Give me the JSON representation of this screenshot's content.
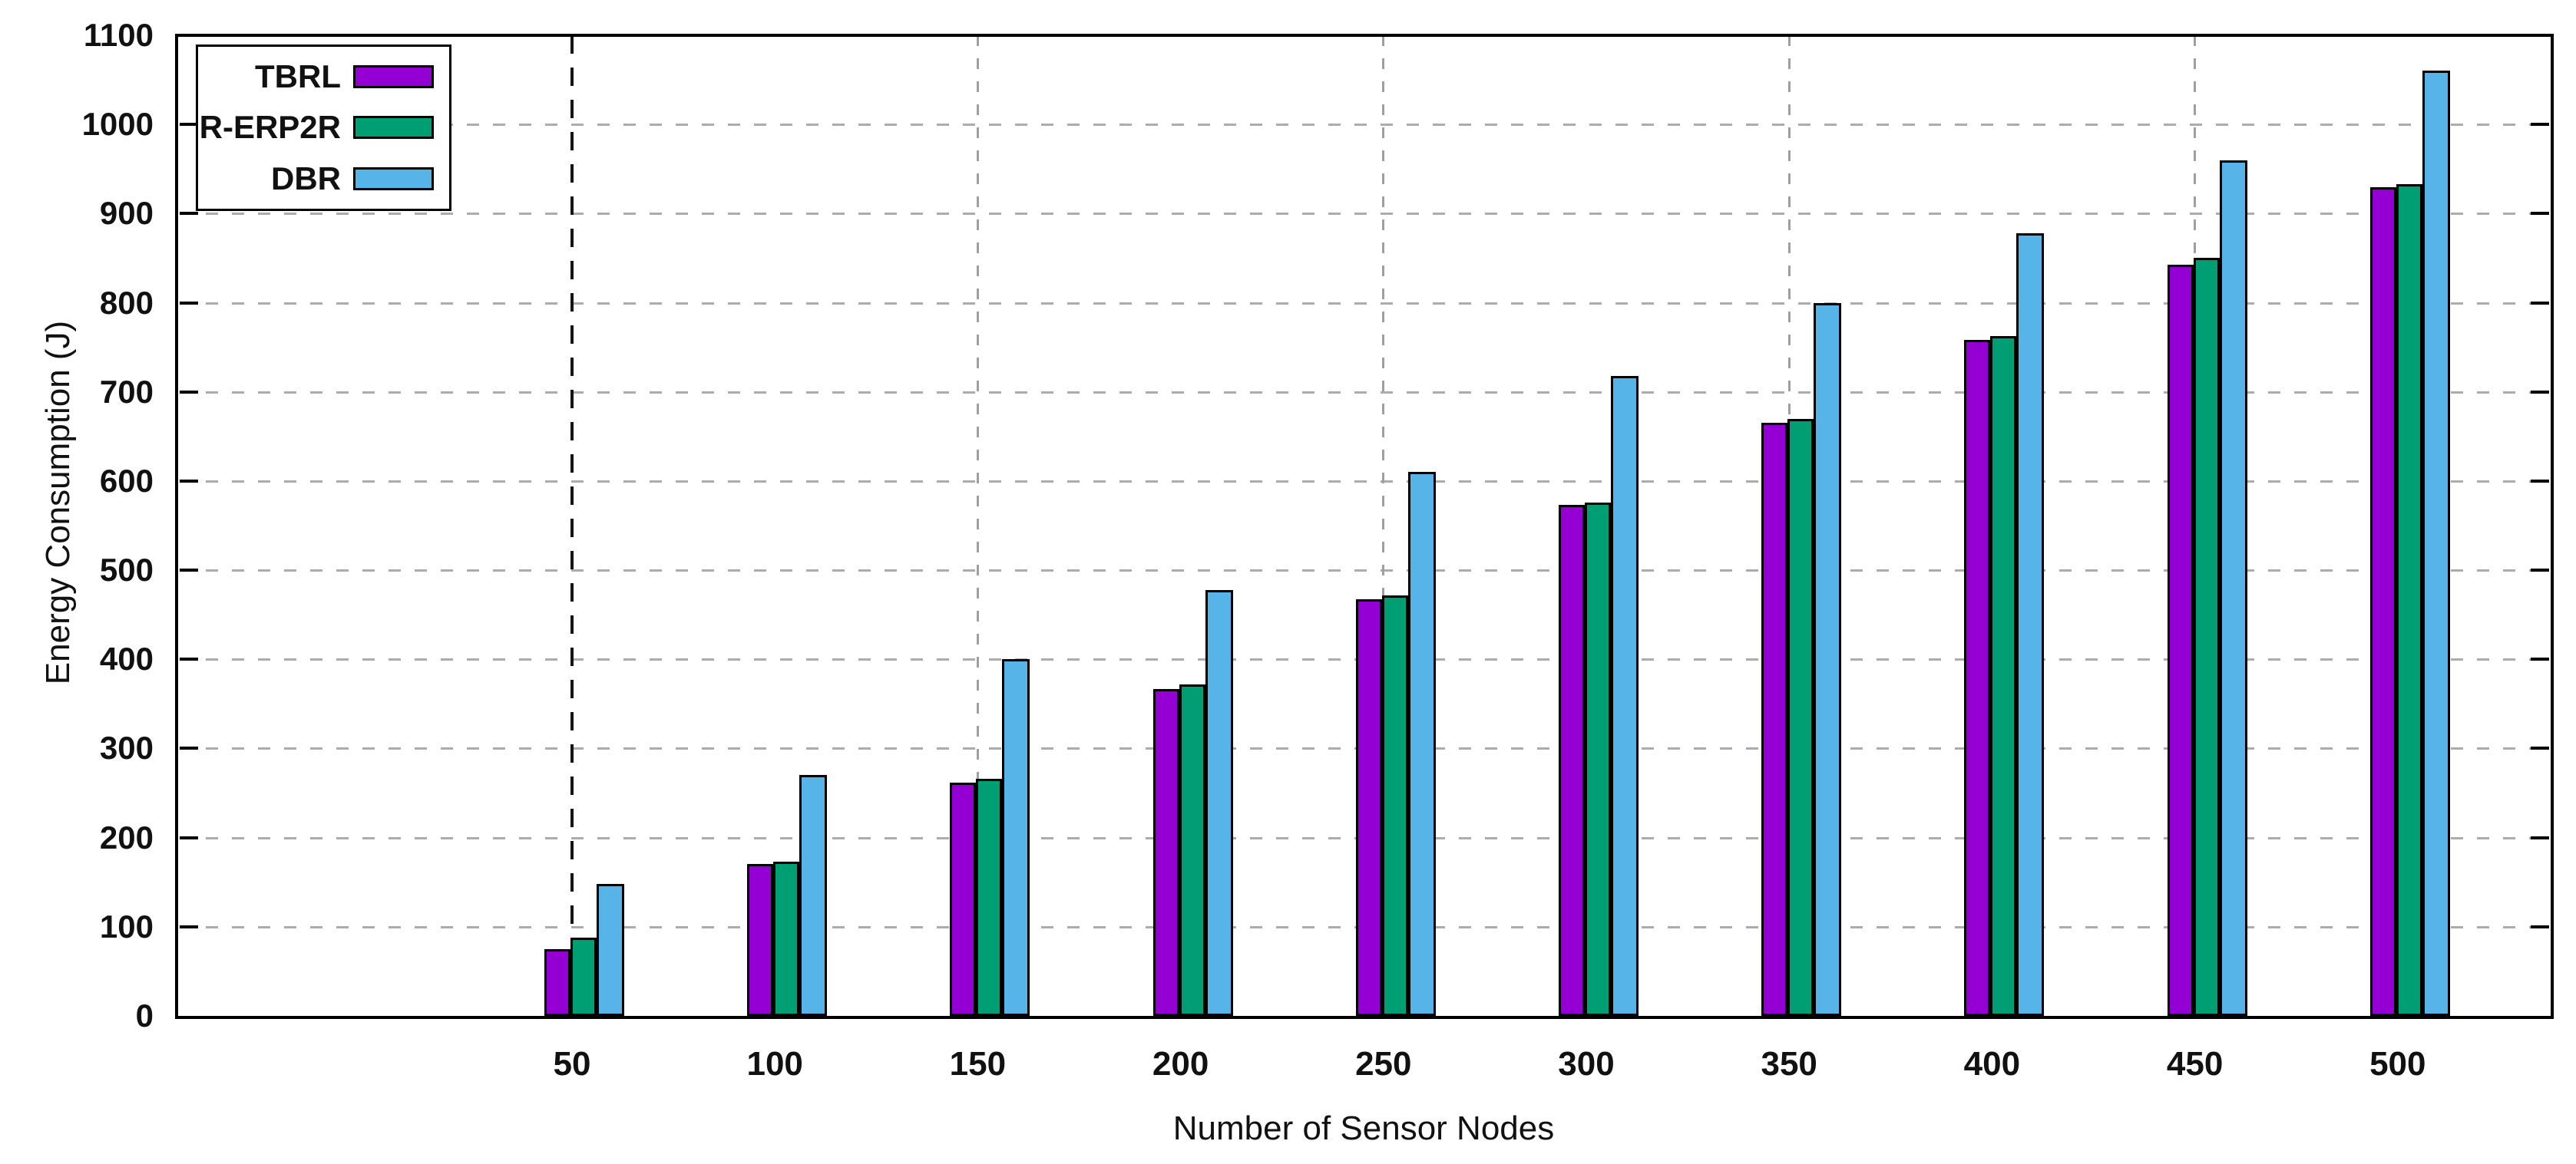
{
  "chart_data": {
    "type": "bar",
    "title": "",
    "xlabel": "Number of Sensor Nodes",
    "ylabel": "Energy Consumption (J)",
    "categories": [
      50,
      100,
      150,
      200,
      250,
      300,
      350,
      400,
      450,
      500
    ],
    "x_tick_labels": [
      "50",
      "100",
      "150",
      "200",
      "250",
      "300",
      "350",
      "400",
      "450",
      "500"
    ],
    "y_tick_labels": [
      "0",
      "100",
      "200",
      "300",
      "400",
      "500",
      "600",
      "700",
      "800",
      "900",
      "1000",
      "1100"
    ],
    "series": [
      {
        "name": "TBRL",
        "color": "#9400D3",
        "values": [
          75,
          170,
          262,
          367,
          467,
          573,
          665,
          758,
          843,
          930
        ]
      },
      {
        "name": "R-ERP2R",
        "color": "#009E73",
        "values": [
          88,
          173,
          266,
          372,
          472,
          576,
          670,
          763,
          850,
          933
        ]
      },
      {
        "name": "DBR",
        "color": "#56B4E9",
        "values": [
          148,
          270,
          400,
          478,
          610,
          718,
          800,
          878,
          960,
          1060
        ]
      }
    ],
    "ylim": [
      0,
      1100
    ],
    "ytick_step": 100,
    "grid": true,
    "legend_position": "top-left",
    "reference_dashed_line_x": 50,
    "minor_vertical_gridlines_x": [
      150,
      250,
      350,
      450
    ],
    "frame_color": "#000000",
    "gridline_color": "#acacac",
    "background_color": "#ffffff"
  }
}
